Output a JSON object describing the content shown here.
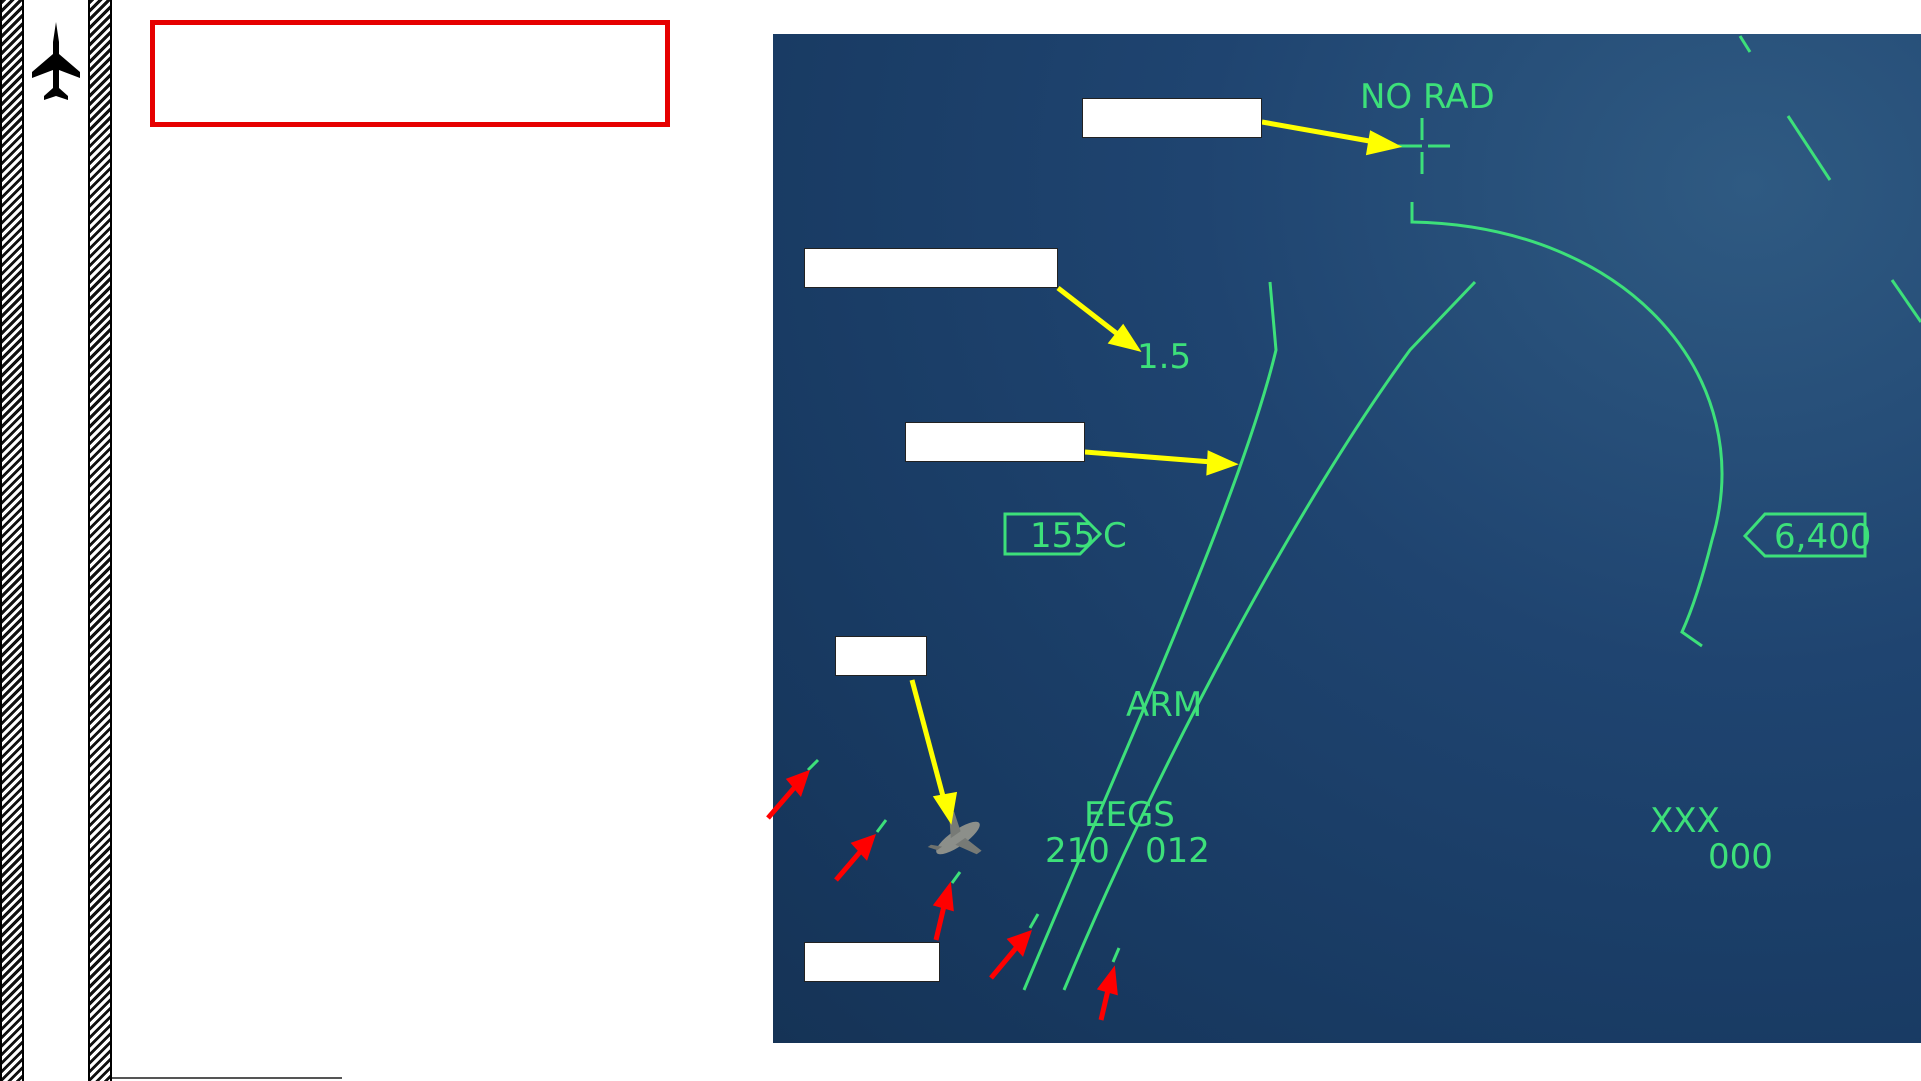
{
  "hud": {
    "no_rad": "NO RAD",
    "range_value": "1.5",
    "airspeed": "155",
    "airspeed_suffix": "C",
    "altitude": "6,400",
    "arm_status": "ARM",
    "eegs_label": "EEGS",
    "eegs_left_value": "210",
    "eegs_right_value": "012",
    "xxx_label": "XXX",
    "zero_value": "000"
  },
  "colors": {
    "hud_green": "#3de07a",
    "callout_arrow": "#ffff00",
    "pointer_arrow": "#ff0000",
    "title_border": "#e60000",
    "hud_background": "#1f4470"
  },
  "icons": {
    "jet": "fighter-jet-silhouette-icon"
  }
}
